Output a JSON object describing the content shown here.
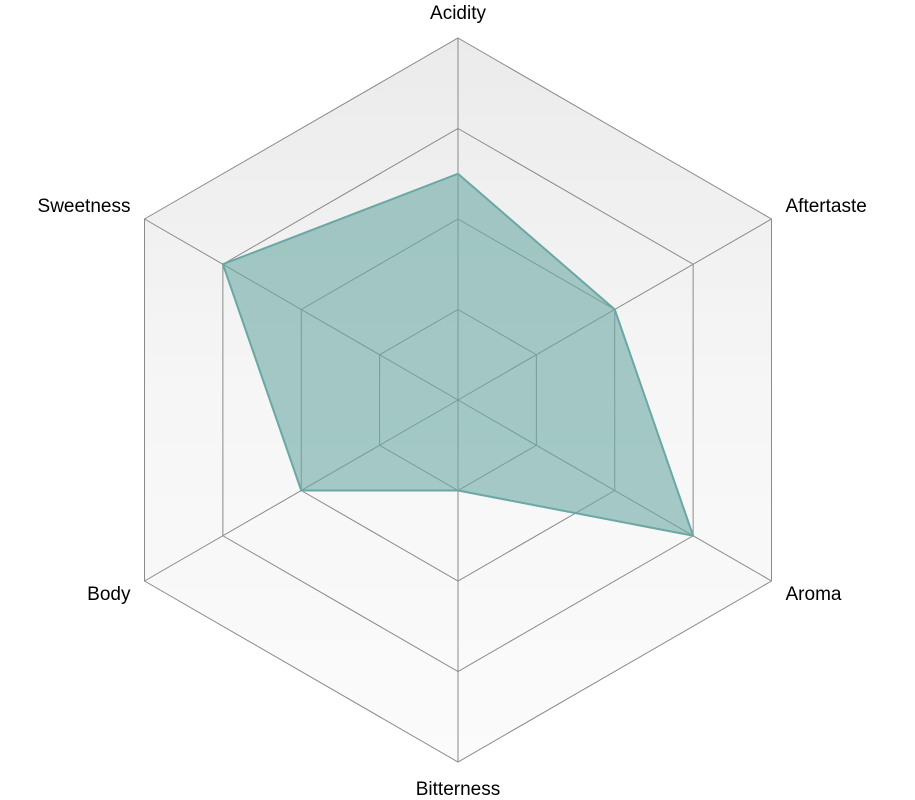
{
  "chart_data": {
    "type": "radar",
    "categories": [
      "Acidity",
      "Aftertaste",
      "Aroma",
      "Bitterness",
      "Body",
      "Sweetness"
    ],
    "values": [
      2.5,
      2,
      3,
      1,
      2,
      3
    ],
    "color": "#6aa8a4",
    "rlim": [
      0,
      4
    ],
    "rticks": [
      1,
      2,
      3,
      4
    ],
    "grid": true
  }
}
